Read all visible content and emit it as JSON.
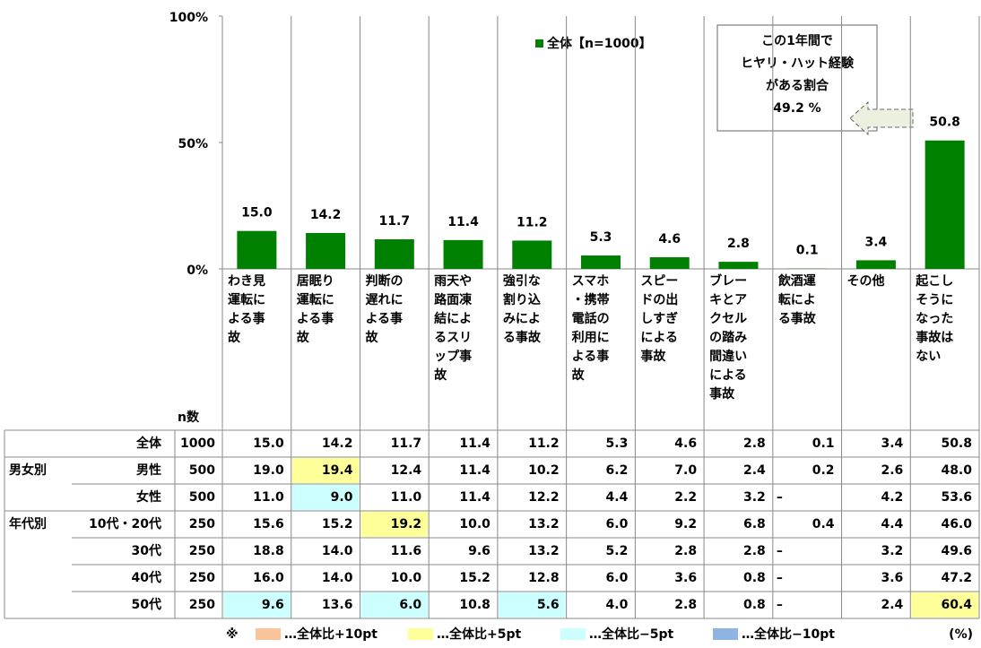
{
  "chart_data": {
    "type": "bar",
    "legend": "全体【n=1000】",
    "color": "#008000",
    "categories": [
      "わき見運転による事故",
      "居眠り運転による事故",
      "判断の遅れによる事故",
      "雨天や路面凍結によるスリップ事故",
      "強引な割り込みによる事故",
      "スマホ・携帯電話の利用による事故",
      "スピードの出しすぎによる事故",
      "ブレーキとアクセルの踏み間違いによる事故",
      "飲酒運転による事故",
      "その他",
      "起こしそうになった事故はない"
    ],
    "values": [
      15.0,
      14.2,
      11.7,
      11.4,
      11.2,
      5.3,
      4.6,
      2.8,
      0.1,
      3.4,
      50.8
    ],
    "value_labels": [
      "15.0",
      "14.2",
      "11.7",
      "11.4",
      "11.2",
      "5.3",
      "4.6",
      "2.8",
      "0.1",
      "3.4",
      "50.8"
    ],
    "ylim": [
      0,
      100
    ],
    "yticks": [
      {
        "value": 0,
        "label": "0%"
      },
      {
        "value": 50,
        "label": "50%"
      },
      {
        "value": 100,
        "label": "100%"
      }
    ],
    "annotation": [
      "この1年間で",
      "ヒヤリ・ハット経験",
      "がある割合",
      "49.2 %"
    ]
  },
  "table": {
    "n_header": "n数",
    "rows": [
      {
        "label": "全体",
        "n": "1000",
        "cells": [
          "15.0",
          "14.2",
          "11.7",
          "11.4",
          "11.2",
          "5.3",
          "4.6",
          "2.8",
          "0.1",
          "3.4",
          "50.8"
        ]
      },
      {
        "group": "男女別",
        "label": "男性",
        "n": "500",
        "cells": [
          "19.0",
          "19.4",
          "12.4",
          "11.4",
          "10.2",
          "6.2",
          "7.0",
          "2.4",
          "0.2",
          "2.6",
          "48.0"
        ]
      },
      {
        "label": "女性",
        "n": "500",
        "cells": [
          "11.0",
          "9.0",
          "11.0",
          "11.4",
          "12.2",
          "4.4",
          "2.2",
          "3.2",
          "–",
          "4.2",
          "53.6"
        ]
      },
      {
        "group": "年代別",
        "label": "10代・20代",
        "n": "250",
        "cells": [
          "15.6",
          "15.2",
          "19.2",
          "10.0",
          "13.2",
          "6.0",
          "9.2",
          "6.8",
          "0.4",
          "4.4",
          "46.0"
        ]
      },
      {
        "label": "30代",
        "n": "250",
        "cells": [
          "18.8",
          "14.0",
          "11.6",
          "9.6",
          "13.2",
          "5.2",
          "2.8",
          "2.8",
          "–",
          "3.2",
          "49.6"
        ]
      },
      {
        "label": "40代",
        "n": "250",
        "cells": [
          "16.0",
          "14.0",
          "10.0",
          "15.2",
          "12.8",
          "6.0",
          "3.6",
          "0.8",
          "–",
          "3.6",
          "47.2"
        ]
      },
      {
        "label": "50代",
        "n": "250",
        "cells": [
          "9.6",
          "13.6",
          "6.0",
          "10.8",
          "5.6",
          "4.0",
          "2.8",
          "0.8",
          "–",
          "2.4",
          "60.4"
        ]
      }
    ],
    "highlights": [
      {
        "row": 1,
        "col": 1,
        "key": 1
      },
      {
        "row": 2,
        "col": 1,
        "key": 2
      },
      {
        "row": 3,
        "col": 2,
        "key": 1
      },
      {
        "row": 6,
        "col": 0,
        "key": 2
      },
      {
        "row": 6,
        "col": 2,
        "key": 2
      },
      {
        "row": 6,
        "col": 4,
        "key": 2
      },
      {
        "row": 6,
        "col": 10,
        "key": 1
      }
    ],
    "key_mark": "※",
    "key": [
      {
        "label": "…全体比+10pt",
        "color": "#f9c49a"
      },
      {
        "label": "…全体比+5pt",
        "color": "#ffff99"
      },
      {
        "label": "…全体比−5pt",
        "color": "#ccffff"
      },
      {
        "label": "…全体比−10pt",
        "color": "#8db4e2"
      }
    ],
    "unit": "(%)"
  }
}
